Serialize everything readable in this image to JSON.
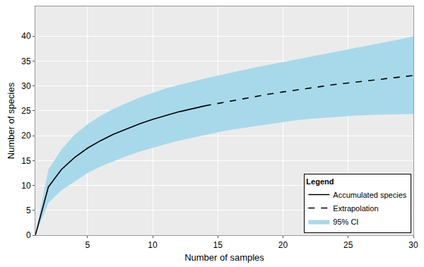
{
  "chart_data": {
    "type": "line",
    "x_label": "Number of samples",
    "y_label": "Number of species",
    "legend_title": "Legend",
    "legend": "bottom right",
    "grid": true,
    "xlim": [
      1,
      30
    ],
    "xticks": [
      5,
      10,
      15,
      20,
      25,
      30
    ],
    "ylim": [
      0,
      46
    ],
    "yticks": [
      0,
      5,
      10,
      15,
      20,
      25,
      30,
      35,
      40
    ],
    "series": [
      {
        "name": "Accumulated species",
        "type": "line",
        "line_style": "solid",
        "color": "#000000",
        "x": [
          1,
          2,
          3,
          4,
          5,
          6,
          7,
          8,
          9,
          10,
          11,
          12,
          13,
          14
        ],
        "values": [
          0,
          9.7,
          13.2,
          15.6,
          17.5,
          19.0,
          20.3,
          21.4,
          22.4,
          23.3,
          24.1,
          24.8,
          25.4,
          26.0
        ]
      },
      {
        "name": "Extrapolation",
        "type": "line",
        "line_style": "dashed",
        "color": "#000000",
        "x": [
          14,
          15,
          16,
          17,
          18,
          19,
          20,
          21,
          22,
          23,
          24,
          25,
          26,
          27,
          28,
          29,
          30
        ],
        "values": [
          26.0,
          26.5,
          27.0,
          27.5,
          28.0,
          28.4,
          28.8,
          29.2,
          29.6,
          30.0,
          30.3,
          30.6,
          30.9,
          31.2,
          31.5,
          31.8,
          32.1
        ]
      },
      {
        "name": "95% CI",
        "type": "band",
        "color": "#a8d9ea",
        "x": [
          1,
          2,
          3,
          4,
          5,
          6,
          7,
          8,
          9,
          10,
          11,
          12,
          13,
          14,
          15,
          16,
          17,
          18,
          19,
          20,
          21,
          22,
          23,
          24,
          25,
          26,
          27,
          28,
          29,
          30
        ],
        "lower": [
          0,
          6.5,
          9.0,
          10.8,
          12.5,
          13.8,
          14.9,
          15.9,
          16.8,
          17.6,
          18.3,
          19.0,
          19.6,
          20.2,
          20.7,
          21.2,
          21.6,
          22.0,
          22.4,
          22.8,
          23.1,
          23.4,
          23.6,
          23.8,
          24.0,
          24.1,
          24.2,
          24.3,
          24.3,
          24.4
        ],
        "upper": [
          0,
          13.2,
          17.2,
          20.2,
          22.3,
          24.0,
          25.4,
          26.6,
          27.7,
          28.6,
          29.5,
          30.2,
          30.9,
          31.5,
          32.1,
          32.7,
          33.3,
          33.8,
          34.3,
          34.8,
          35.3,
          35.8,
          36.3,
          36.8,
          37.3,
          37.8,
          38.3,
          38.9,
          39.4,
          40.0
        ]
      }
    ]
  }
}
